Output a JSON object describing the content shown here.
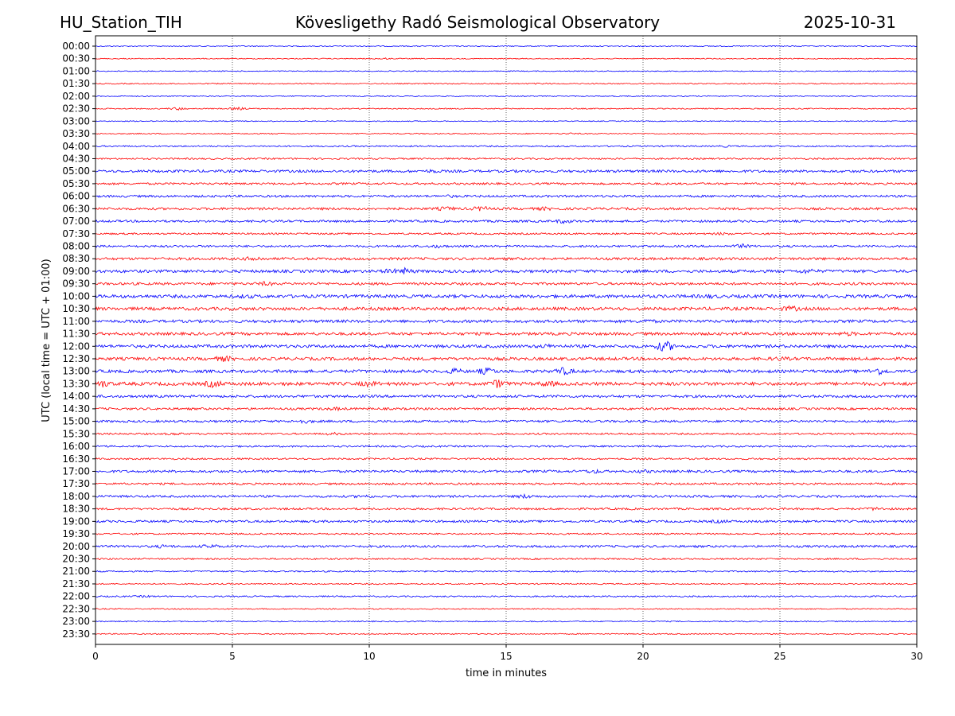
{
  "header": {
    "station": "HU_Station_TIH",
    "observatory": "Kövesligethy Radó Seismological Observatory",
    "date": "2025-10-31"
  },
  "chart_data": {
    "type": "helicorder",
    "title": "Kövesligethy Radó Seismological Observatory",
    "xlabel": "time in minutes",
    "ylabel": "UTC (local time = UTC + 01:00)",
    "xlim": [
      0,
      30
    ],
    "x_ticks": [
      "0",
      "5",
      "10",
      "15",
      "20",
      "25",
      "30"
    ],
    "x_tick_values": [
      0,
      5,
      10,
      15,
      20,
      25,
      30
    ],
    "grid": "vertical dotted at x ticks",
    "colors": [
      "#0000ff",
      "#ff0000"
    ],
    "rows": [
      {
        "label": "00:00",
        "amplitude": 0.6,
        "events": []
      },
      {
        "label": "00:30",
        "amplitude": 0.6,
        "events": [
          [
            10.5,
            1.2
          ]
        ]
      },
      {
        "label": "01:00",
        "amplitude": 0.6,
        "events": []
      },
      {
        "label": "01:30",
        "amplitude": 0.7,
        "events": [
          [
            16.3,
            1.2
          ]
        ]
      },
      {
        "label": "02:00",
        "amplitude": 0.6,
        "events": []
      },
      {
        "label": "02:30",
        "amplitude": 0.7,
        "events": [
          [
            3.0,
            2.0
          ],
          [
            5.2,
            2.0
          ]
        ]
      },
      {
        "label": "03:00",
        "amplitude": 0.6,
        "events": []
      },
      {
        "label": "03:30",
        "amplitude": 0.7,
        "events": [
          [
            17.3,
            1.2
          ]
        ]
      },
      {
        "label": "04:00",
        "amplitude": 0.9,
        "events": [
          [
            23.0,
            1.5
          ]
        ]
      },
      {
        "label": "04:30",
        "amplitude": 1.0,
        "events": []
      },
      {
        "label": "05:00",
        "amplitude": 1.6,
        "events": [
          [
            12.3,
            2.5
          ]
        ]
      },
      {
        "label": "05:30",
        "amplitude": 1.3,
        "events": []
      },
      {
        "label": "06:00",
        "amplitude": 1.4,
        "events": [
          [
            13.0,
            2.0
          ]
        ]
      },
      {
        "label": "06:30",
        "amplitude": 1.5,
        "events": [
          [
            12.8,
            3.0
          ],
          [
            14.1,
            3.5
          ],
          [
            16.4,
            2.5
          ]
        ]
      },
      {
        "label": "07:00",
        "amplitude": 1.4,
        "events": [
          [
            17.1,
            3.0
          ]
        ]
      },
      {
        "label": "07:30",
        "amplitude": 1.1,
        "events": [
          [
            22.9,
            2.0
          ]
        ]
      },
      {
        "label": "08:00",
        "amplitude": 1.3,
        "events": [
          [
            12.5,
            2.5
          ],
          [
            23.6,
            3.0
          ]
        ]
      },
      {
        "label": "08:30",
        "amplitude": 1.6,
        "events": [
          [
            5.8,
            3.5
          ]
        ]
      },
      {
        "label": "09:00",
        "amplitude": 1.8,
        "events": [
          [
            10.8,
            3.5
          ],
          [
            11.3,
            4.5
          ],
          [
            26.0,
            3.5
          ]
        ]
      },
      {
        "label": "09:30",
        "amplitude": 1.6,
        "events": [
          [
            6.2,
            3.0
          ]
        ]
      },
      {
        "label": "10:00",
        "amplitude": 2.0,
        "events": [
          [
            5.5,
            3.0
          ],
          [
            22.4,
            3.0
          ]
        ]
      },
      {
        "label": "10:30",
        "amplitude": 2.0,
        "events": [
          [
            25.4,
            4.0
          ]
        ]
      },
      {
        "label": "11:00",
        "amplitude": 1.8,
        "events": [
          [
            20.1,
            3.0
          ]
        ]
      },
      {
        "label": "11:30",
        "amplitude": 1.8,
        "events": [
          [
            27.5,
            3.0
          ]
        ]
      },
      {
        "label": "12:00",
        "amplitude": 1.9,
        "events": [
          [
            16.5,
            3.0
          ],
          [
            20.8,
            7.5
          ]
        ]
      },
      {
        "label": "12:30",
        "amplitude": 1.9,
        "events": [
          [
            4.7,
            4.0
          ],
          [
            25.0,
            3.0
          ]
        ]
      },
      {
        "label": "13:00",
        "amplitude": 1.9,
        "events": [
          [
            13.1,
            4.0
          ],
          [
            14.3,
            5.0
          ],
          [
            17.1,
            5.5
          ],
          [
            28.6,
            5.0
          ]
        ]
      },
      {
        "label": "13:30",
        "amplitude": 2.1,
        "events": [
          [
            0.2,
            5.5
          ],
          [
            4.3,
            5.0
          ],
          [
            10.0,
            4.0
          ],
          [
            14.7,
            6.0
          ],
          [
            16.5,
            4.0
          ]
        ]
      },
      {
        "label": "14:00",
        "amplitude": 1.6,
        "events": []
      },
      {
        "label": "14:30",
        "amplitude": 1.4,
        "events": [
          [
            8.8,
            2.5
          ]
        ]
      },
      {
        "label": "15:00",
        "amplitude": 1.4,
        "events": [
          [
            7.6,
            3.0
          ]
        ]
      },
      {
        "label": "15:30",
        "amplitude": 1.1,
        "events": [
          [
            2.9,
            2.0
          ],
          [
            8.7,
            2.0
          ]
        ]
      },
      {
        "label": "16:00",
        "amplitude": 1.1,
        "events": []
      },
      {
        "label": "16:30",
        "amplitude": 1.1,
        "events": []
      },
      {
        "label": "17:00",
        "amplitude": 1.5,
        "events": [
          [
            18.2,
            3.0
          ],
          [
            20.0,
            2.5
          ]
        ]
      },
      {
        "label": "17:30",
        "amplitude": 1.3,
        "events": []
      },
      {
        "label": "18:00",
        "amplitude": 1.4,
        "events": [
          [
            9.8,
            2.5
          ],
          [
            15.7,
            3.0
          ]
        ]
      },
      {
        "label": "18:30",
        "amplitude": 1.3,
        "events": [
          [
            28.5,
            2.5
          ]
        ]
      },
      {
        "label": "19:00",
        "amplitude": 1.4,
        "events": [
          [
            22.8,
            2.5
          ]
        ]
      },
      {
        "label": "19:30",
        "amplitude": 1.0,
        "events": []
      },
      {
        "label": "20:00",
        "amplitude": 1.4,
        "events": [
          [
            2.5,
            2.5
          ],
          [
            4.2,
            3.0
          ]
        ]
      },
      {
        "label": "20:30",
        "amplitude": 1.0,
        "events": []
      },
      {
        "label": "21:00",
        "amplitude": 0.9,
        "events": []
      },
      {
        "label": "21:30",
        "amplitude": 0.8,
        "events": []
      },
      {
        "label": "22:00",
        "amplitude": 0.9,
        "events": [
          [
            1.8,
            1.5
          ]
        ]
      },
      {
        "label": "22:30",
        "amplitude": 0.7,
        "events": []
      },
      {
        "label": "23:00",
        "amplitude": 0.7,
        "events": []
      },
      {
        "label": "23:30",
        "amplitude": 0.7,
        "events": []
      }
    ]
  }
}
